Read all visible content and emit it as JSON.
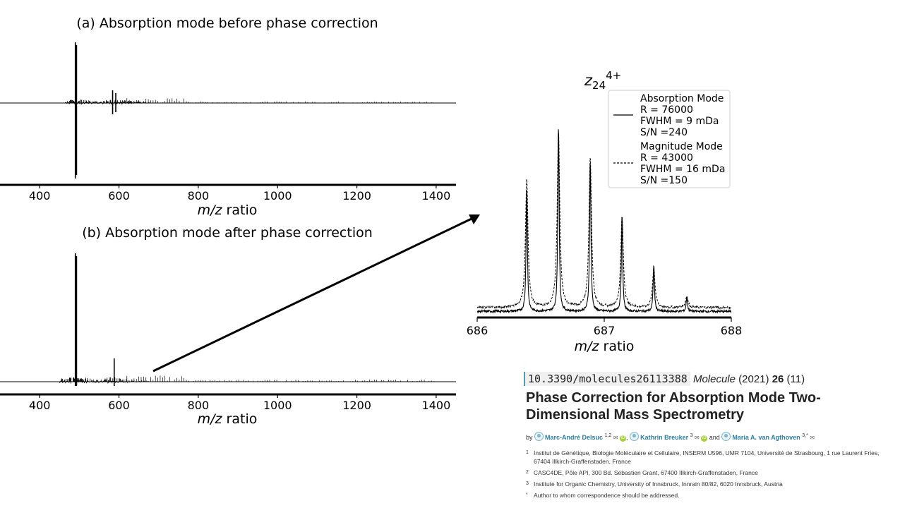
{
  "chart_data": [
    {
      "type": "line",
      "title": "(a) Absorption mode before phase correction",
      "xlabel_italic": "m/z",
      "xlabel_rest": " ratio",
      "xlim": [
        300,
        1450
      ],
      "xticks": [
        400,
        600,
        800,
        1000,
        1200,
        1400
      ],
      "tick_labels": [
        "400",
        "600",
        "800",
        "1000",
        "1200",
        "1400"
      ],
      "peaks": [
        {
          "x": 490,
          "up": 86,
          "down": -107
        },
        {
          "x": 493,
          "up": 82,
          "down": -102
        },
        {
          "x": 584,
          "up": 18,
          "down": -16
        },
        {
          "x": 592,
          "up": 14,
          "down": -13
        }
      ]
    },
    {
      "type": "line",
      "title": "(b) Absorption mode after phase correction",
      "xlabel_italic": "m/z",
      "xlabel_rest": " ratio",
      "xlim": [
        300,
        1450
      ],
      "xticks": [
        400,
        600,
        800,
        1000,
        1200,
        1400
      ],
      "tick_labels": [
        "400",
        "600",
        "800",
        "1000",
        "1200",
        "1400"
      ],
      "peaks": [
        {
          "x": 490,
          "up": 182
        },
        {
          "x": 493,
          "up": 178
        },
        {
          "x": 588,
          "up": 33
        }
      ]
    },
    {
      "type": "line",
      "title_base": "z",
      "title_sub": "24",
      "title_sup": "4+",
      "xlabel_italic": "m/z",
      "xlabel_rest": " ratio",
      "xlim": [
        686,
        688
      ],
      "xticks": [
        686,
        687,
        688
      ],
      "tick_labels": [
        "686",
        "687",
        "688"
      ],
      "series": [
        {
          "name_lines": [
            "Absorption Mode",
            "R = 76000",
            "FWHM = 9 mDa",
            "S/N =240"
          ],
          "style": "solid",
          "peaks": [
            {
              "x": 686.39,
              "y": 0.66
            },
            {
              "x": 686.64,
              "y": 1.0
            },
            {
              "x": 686.89,
              "y": 0.81
            },
            {
              "x": 687.14,
              "y": 0.51
            },
            {
              "x": 687.39,
              "y": 0.25
            },
            {
              "x": 687.65,
              "y": 0.08
            }
          ]
        },
        {
          "name_lines": [
            "Magnitude Mode",
            "R = 43000",
            "FWHM = 16 mDa",
            "S/N =150"
          ],
          "style": "dashed",
          "peaks": [
            {
              "x": 686.39,
              "y": 0.68
            },
            {
              "x": 686.64,
              "y": 0.93
            },
            {
              "x": 686.89,
              "y": 0.79
            },
            {
              "x": 687.14,
              "y": 0.48
            },
            {
              "x": 687.39,
              "y": 0.21
            },
            {
              "x": 687.65,
              "y": 0.06
            }
          ]
        }
      ]
    }
  ],
  "article": {
    "doi": "10.3390/molecules26113388",
    "journal": "Molecule",
    "year": "(2021)",
    "volume": "26",
    "issue": "(11)",
    "title": "Phase Correction for Absorption Mode Two-Dimensional Mass Spectrometry",
    "by": "by",
    "authors": [
      {
        "name": "Marc-André Delsuc",
        "aff": "1,2"
      },
      {
        "name": "Kathrin Breuker",
        "aff": "3"
      },
      {
        "name": "Maria A. van Agthoven",
        "aff": "3,*"
      }
    ],
    "and": "and",
    "orcid_label": "iD",
    "affiliations": [
      {
        "num": "1",
        "text": "Institut de Génétique, Biologie Moléculaire et Cellulaire, INSERM U596, UMR 7104, Université de Strasbourg, 1 rue Laurent Fries, 67404 Illkirch-Graffenstaden, France"
      },
      {
        "num": "2",
        "text": "CASC4DE, Pôle API, 300 Bd. Sébastien Grant, 67400 Illkirch-Graffenstaden, France"
      },
      {
        "num": "3",
        "text": "Institute for Organic Chemistry, University of Innsbruck, Innrain 80/82, 6020 Innsbruck, Austria"
      },
      {
        "num": "*",
        "text": "Author to whom correspondence should be addressed."
      }
    ]
  }
}
